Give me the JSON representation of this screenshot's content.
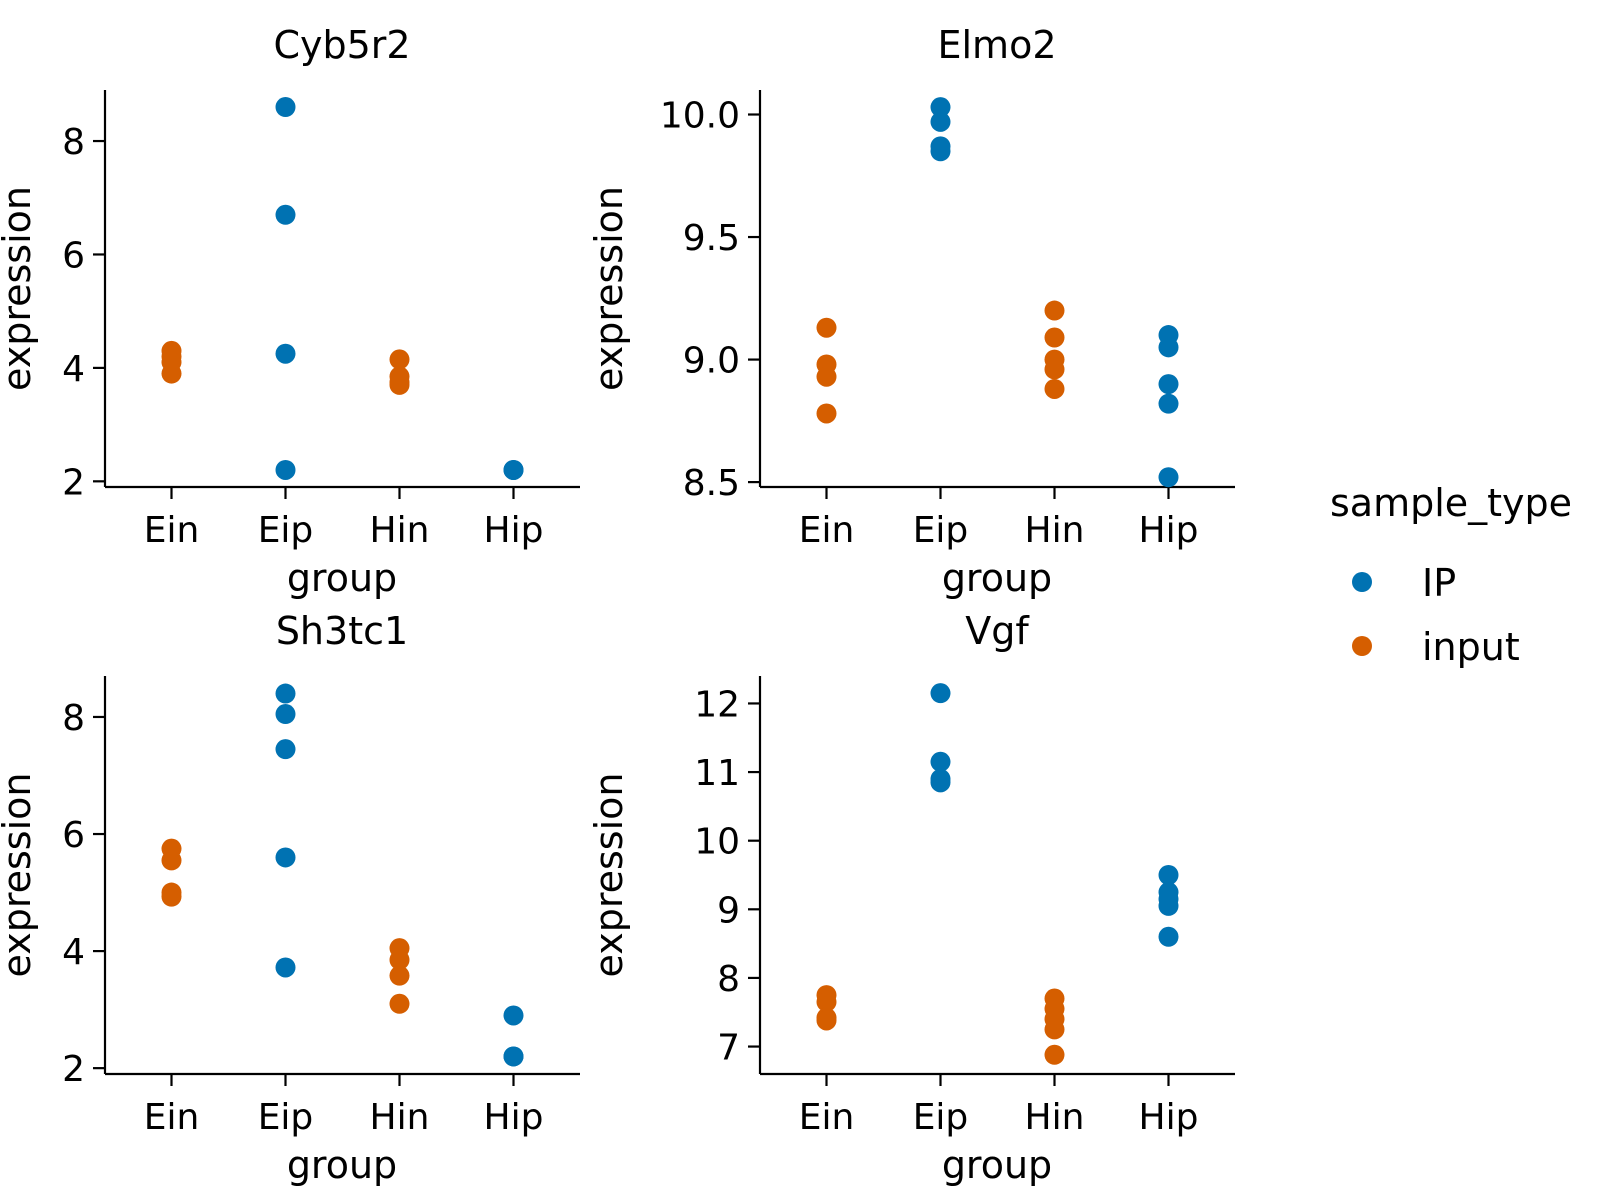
{
  "legend": {
    "title": "sample_type",
    "entries": [
      {
        "label": "IP",
        "color": "#0072B2"
      },
      {
        "label": "input",
        "color": "#D55E00"
      }
    ]
  },
  "chart_data": [
    {
      "type": "scatter",
      "title": "Cyb5r2",
      "xlabel": "group",
      "ylabel": "expression",
      "categories": [
        "Ein",
        "Eip",
        "Hin",
        "Hip"
      ],
      "ylim": [
        1.9,
        8.9
      ],
      "yticks": [
        2,
        4,
        6,
        8
      ],
      "ytick_labels": [
        "2",
        "4",
        "6",
        "8"
      ],
      "series": [
        {
          "name": "IP",
          "points": [
            [
              "Eip",
              8.6
            ],
            [
              "Eip",
              6.7
            ],
            [
              "Eip",
              4.25
            ],
            [
              "Eip",
              2.2
            ],
            [
              "Hip",
              2.2
            ],
            [
              "Hip",
              2.2
            ]
          ]
        },
        {
          "name": "input",
          "points": [
            [
              "Ein",
              4.3
            ],
            [
              "Ein",
              4.2
            ],
            [
              "Ein",
              4.1
            ],
            [
              "Ein",
              3.9
            ],
            [
              "Hin",
              4.15
            ],
            [
              "Hin",
              3.85
            ],
            [
              "Hin",
              3.75
            ],
            [
              "Hin",
              3.7
            ]
          ]
        }
      ]
    },
    {
      "type": "scatter",
      "title": "Elmo2",
      "xlabel": "group",
      "ylabel": "expression",
      "categories": [
        "Ein",
        "Eip",
        "Hin",
        "Hip"
      ],
      "ylim": [
        8.48,
        10.1
      ],
      "yticks": [
        8.5,
        9.0,
        9.5,
        10.0
      ],
      "ytick_labels": [
        "8.5",
        "9.0",
        "9.5",
        "10.0"
      ],
      "series": [
        {
          "name": "IP",
          "points": [
            [
              "Eip",
              10.03
            ],
            [
              "Eip",
              9.97
            ],
            [
              "Eip",
              9.87
            ],
            [
              "Eip",
              9.85
            ],
            [
              "Hip",
              9.1
            ],
            [
              "Hip",
              9.05
            ],
            [
              "Hip",
              8.9
            ],
            [
              "Hip",
              8.82
            ],
            [
              "Hip",
              8.52
            ]
          ]
        },
        {
          "name": "input",
          "points": [
            [
              "Ein",
              9.13
            ],
            [
              "Ein",
              8.98
            ],
            [
              "Ein",
              8.93
            ],
            [
              "Ein",
              8.78
            ],
            [
              "Hin",
              9.2
            ],
            [
              "Hin",
              9.09
            ],
            [
              "Hin",
              9.0
            ],
            [
              "Hin",
              8.96
            ],
            [
              "Hin",
              8.88
            ]
          ]
        }
      ]
    },
    {
      "type": "scatter",
      "title": "Sh3tc1",
      "xlabel": "group",
      "ylabel": "expression",
      "categories": [
        "Ein",
        "Eip",
        "Hin",
        "Hip"
      ],
      "ylim": [
        1.9,
        8.7
      ],
      "yticks": [
        2,
        4,
        6,
        8
      ],
      "ytick_labels": [
        "2",
        "4",
        "6",
        "8"
      ],
      "series": [
        {
          "name": "IP",
          "points": [
            [
              "Eip",
              8.4
            ],
            [
              "Eip",
              8.05
            ],
            [
              "Eip",
              7.45
            ],
            [
              "Eip",
              5.6
            ],
            [
              "Eip",
              3.72
            ],
            [
              "Hip",
              2.9
            ],
            [
              "Hip",
              2.2
            ],
            [
              "Hip",
              2.2
            ]
          ]
        },
        {
          "name": "input",
          "points": [
            [
              "Ein",
              5.75
            ],
            [
              "Ein",
              5.55
            ],
            [
              "Ein",
              5.0
            ],
            [
              "Ein",
              4.93
            ],
            [
              "Hin",
              4.05
            ],
            [
              "Hin",
              3.85
            ],
            [
              "Hin",
              3.58
            ],
            [
              "Hin",
              3.1
            ]
          ]
        }
      ]
    },
    {
      "type": "scatter",
      "title": "Vgf",
      "xlabel": "group",
      "ylabel": "expression",
      "categories": [
        "Ein",
        "Eip",
        "Hin",
        "Hip"
      ],
      "ylim": [
        6.6,
        12.4
      ],
      "yticks": [
        7,
        8,
        9,
        10,
        11,
        12
      ],
      "ytick_labels": [
        "7",
        "8",
        "9",
        "10",
        "11",
        "12"
      ],
      "series": [
        {
          "name": "IP",
          "points": [
            [
              "Eip",
              12.15
            ],
            [
              "Eip",
              11.15
            ],
            [
              "Eip",
              10.9
            ],
            [
              "Eip",
              10.85
            ],
            [
              "Hip",
              9.5
            ],
            [
              "Hip",
              9.25
            ],
            [
              "Hip",
              9.15
            ],
            [
              "Hip",
              9.05
            ],
            [
              "Hip",
              8.6
            ]
          ]
        },
        {
          "name": "input",
          "points": [
            [
              "Ein",
              7.75
            ],
            [
              "Ein",
              7.65
            ],
            [
              "Ein",
              7.42
            ],
            [
              "Ein",
              7.38
            ],
            [
              "Hin",
              7.7
            ],
            [
              "Hin",
              7.55
            ],
            [
              "Hin",
              7.4
            ],
            [
              "Hin",
              7.25
            ],
            [
              "Hin",
              6.88
            ]
          ]
        }
      ]
    }
  ]
}
